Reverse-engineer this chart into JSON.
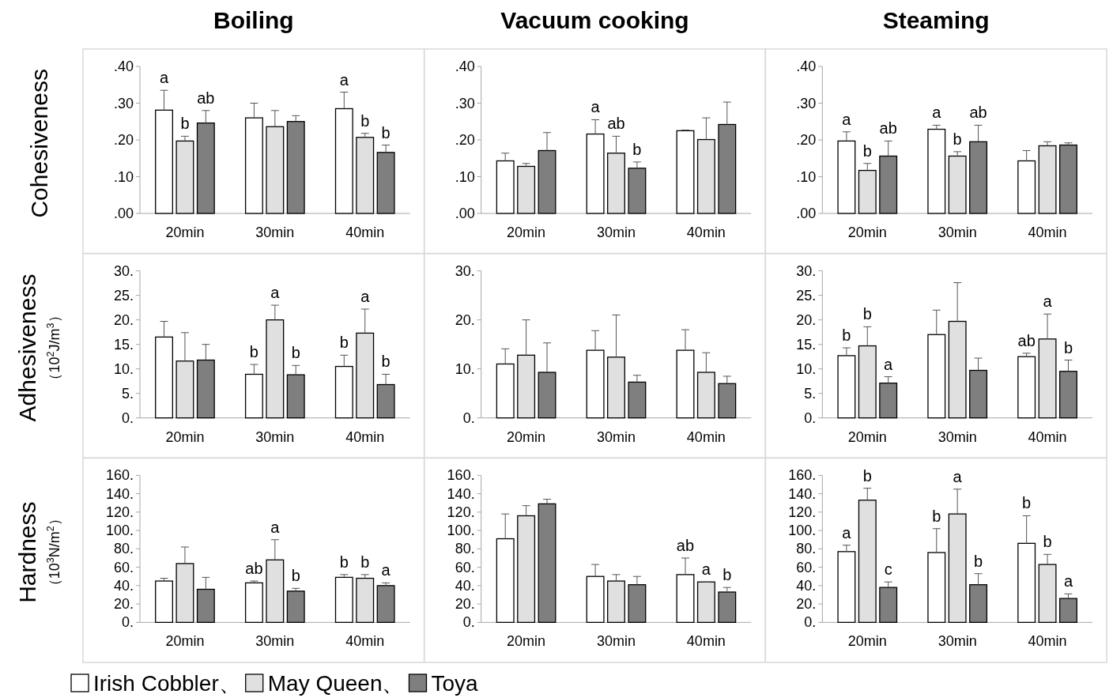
{
  "chart_data": [
    {
      "type": "bar",
      "title": "Boiling",
      "ylabel": "Cohesiveness",
      "categories": [
        "20min",
        "30min",
        "40min"
      ],
      "ylim": [
        0,
        0.4
      ],
      "yticks": [
        {
          "value": 0,
          "label": ".00"
        },
        {
          "value": 0.1,
          "label": ".10"
        },
        {
          "value": 0.2,
          "label": ".20"
        },
        {
          "value": 0.3,
          "label": ".30"
        },
        {
          "value": 0.4,
          "label": ".40"
        }
      ],
      "series": [
        {
          "color": "#ffffff",
          "values": [
            0.281,
            0.26,
            0.285
          ],
          "errors": [
            [
              0.281,
              0.335
            ],
            [
              0.26,
              0.3
            ],
            [
              0.285,
              0.33
            ]
          ],
          "value_labels": [
            "a",
            null,
            "a"
          ]
        },
        {
          "color": "#e0e0e0",
          "values": [
            0.197,
            0.236,
            0.207
          ],
          "errors": [
            [
              0.197,
              0.21
            ],
            [
              0.236,
              0.28
            ],
            [
              0.207,
              0.218
            ]
          ],
          "value_labels": [
            "b",
            null,
            "b"
          ]
        },
        {
          "color": "#7f7f7f",
          "values": [
            0.246,
            0.25,
            0.166
          ],
          "errors": [
            [
              0.246,
              0.28
            ],
            [
              0.25,
              0.266
            ],
            [
              0.166,
              0.186
            ]
          ],
          "value_labels": [
            "ab",
            null,
            "b"
          ]
        }
      ]
    },
    {
      "type": "bar",
      "title": "Vacuum cooking",
      "categories": [
        "20min",
        "30min",
        "40min"
      ],
      "ylim": [
        0,
        0.4
      ],
      "yticks": [
        {
          "value": 0,
          "label": ".00"
        },
        {
          "value": 0.1,
          "label": ".10"
        },
        {
          "value": 0.2,
          "label": ".20"
        },
        {
          "value": 0.3,
          "label": ".30"
        },
        {
          "value": 0.4,
          "label": ".40"
        }
      ],
      "series": [
        {
          "color": "#ffffff",
          "values": [
            0.143,
            0.216,
            0.225
          ],
          "errors": [
            [
              0.143,
              0.164
            ],
            [
              0.216,
              0.255
            ],
            [
              0.225,
              0.227
            ]
          ],
          "value_labels": [
            null,
            "a",
            null
          ]
        },
        {
          "color": "#e0e0e0",
          "values": [
            0.128,
            0.164,
            0.201
          ],
          "errors": [
            [
              0.128,
              0.136
            ],
            [
              0.164,
              0.21
            ],
            [
              0.201,
              0.26
            ]
          ],
          "value_labels": [
            null,
            "ab",
            null
          ]
        },
        {
          "color": "#7f7f7f",
          "values": [
            0.171,
            0.123,
            0.242
          ],
          "errors": [
            [
              0.171,
              0.22
            ],
            [
              0.123,
              0.14
            ],
            [
              0.242,
              0.303
            ]
          ],
          "value_labels": [
            null,
            "b",
            null
          ]
        }
      ]
    },
    {
      "type": "bar",
      "title": "Steaming",
      "categories": [
        "20min",
        "30min",
        "40min"
      ],
      "ylim": [
        0,
        0.4
      ],
      "yticks": [
        {
          "value": 0,
          "label": ".00"
        },
        {
          "value": 0.1,
          "label": ".10"
        },
        {
          "value": 0.2,
          "label": ".20"
        },
        {
          "value": 0.3,
          "label": ".30"
        },
        {
          "value": 0.4,
          "label": ".40"
        }
      ],
      "series": [
        {
          "color": "#ffffff",
          "values": [
            0.197,
            0.229,
            0.143
          ],
          "errors": [
            [
              0.197,
              0.222
            ],
            [
              0.229,
              0.24
            ],
            [
              0.143,
              0.171
            ]
          ],
          "value_labels": [
            "a",
            "a",
            null
          ]
        },
        {
          "color": "#e0e0e0",
          "values": [
            0.117,
            0.156,
            0.184
          ],
          "errors": [
            [
              0.117,
              0.136
            ],
            [
              0.156,
              0.168
            ],
            [
              0.184,
              0.195
            ]
          ],
          "value_labels": [
            "b",
            "b",
            null
          ]
        },
        {
          "color": "#7f7f7f",
          "values": [
            0.156,
            0.195,
            0.186
          ],
          "errors": [
            [
              0.156,
              0.197
            ],
            [
              0.195,
              0.24
            ],
            [
              0.186,
              0.192
            ]
          ],
          "value_labels": [
            "ab",
            "ab",
            null
          ]
        }
      ]
    },
    {
      "type": "bar",
      "ylabel": "Adhesiveness\n（10$^{2}$J/m$^{3}$）",
      "categories": [
        "20min",
        "30min",
        "40min"
      ],
      "ylim": [
        0,
        30
      ],
      "yticks": [
        {
          "value": 0,
          "label": "0."
        },
        {
          "value": 5,
          "label": "5."
        },
        {
          "value": 10,
          "label": "10."
        },
        {
          "value": 15,
          "label": "15."
        },
        {
          "value": 20,
          "label": "20."
        },
        {
          "value": 25,
          "label": "25."
        },
        {
          "value": 30,
          "label": "30."
        }
      ],
      "series": [
        {
          "color": "#ffffff",
          "values": [
            16.5,
            8.9,
            10.5
          ],
          "errors": [
            [
              16.5,
              19.7
            ],
            [
              8.9,
              10.9
            ],
            [
              10.5,
              12.8
            ]
          ],
          "value_labels": [
            null,
            "b",
            "b"
          ]
        },
        {
          "color": "#e0e0e0",
          "values": [
            11.6,
            20.0,
            17.3
          ],
          "errors": [
            [
              11.6,
              17.4
            ],
            [
              20.0,
              23.0
            ],
            [
              17.3,
              22.2
            ]
          ],
          "value_labels": [
            null,
            "a",
            "a"
          ]
        },
        {
          "color": "#7f7f7f",
          "values": [
            11.8,
            8.8,
            6.8
          ],
          "errors": [
            [
              11.8,
              15.0
            ],
            [
              8.8,
              10.7
            ],
            [
              6.8,
              8.9
            ]
          ],
          "value_labels": [
            null,
            "b",
            "b"
          ]
        }
      ]
    },
    {
      "type": "bar",
      "categories": [
        "20min",
        "30min",
        "40min"
      ],
      "ylim": [
        0,
        30
      ],
      "yticks": [
        {
          "value": 0,
          "label": "0."
        },
        {
          "value": 10,
          "label": "10."
        },
        {
          "value": 20,
          "label": "20."
        },
        {
          "value": 30,
          "label": "30."
        }
      ],
      "series": [
        {
          "color": "#ffffff",
          "values": [
            11.0,
            13.8,
            13.8
          ],
          "errors": [
            [
              11.0,
              14.1
            ],
            [
              13.8,
              17.8
            ],
            [
              13.8,
              18.0
            ]
          ]
        },
        {
          "color": "#e0e0e0",
          "values": [
            12.8,
            12.4,
            9.3
          ],
          "errors": [
            [
              12.8,
              20.0
            ],
            [
              12.4,
              21.0
            ],
            [
              9.3,
              13.3
            ]
          ]
        },
        {
          "color": "#7f7f7f",
          "values": [
            9.3,
            7.3,
            7.0
          ],
          "errors": [
            [
              9.3,
              15.3
            ],
            [
              7.3,
              8.7
            ],
            [
              7.0,
              8.5
            ]
          ]
        }
      ]
    },
    {
      "type": "bar",
      "categories": [
        "20min",
        "30min",
        "40min"
      ],
      "ylim": [
        0,
        30
      ],
      "yticks": [
        {
          "value": 0,
          "label": "0."
        },
        {
          "value": 5,
          "label": "5."
        },
        {
          "value": 10,
          "label": "10."
        },
        {
          "value": 15,
          "label": "15."
        },
        {
          "value": 20,
          "label": "20."
        },
        {
          "value": 25,
          "label": "25."
        },
        {
          "value": 30,
          "label": "30."
        }
      ],
      "series": [
        {
          "color": "#ffffff",
          "values": [
            12.7,
            17.0,
            12.5
          ],
          "errors": [
            [
              12.7,
              14.3
            ],
            [
              17.0,
              22.0
            ],
            [
              12.5,
              13.2
            ]
          ],
          "value_labels": [
            "b",
            null,
            "ab"
          ]
        },
        {
          "color": "#e0e0e0",
          "values": [
            14.7,
            19.7,
            16.1
          ],
          "errors": [
            [
              14.7,
              18.6
            ],
            [
              19.7,
              27.6
            ],
            [
              16.1,
              21.2
            ]
          ],
          "value_labels": [
            "b",
            null,
            "a"
          ]
        },
        {
          "color": "#7f7f7f",
          "values": [
            7.1,
            9.7,
            9.5
          ],
          "errors": [
            [
              7.1,
              8.4
            ],
            [
              9.7,
              12.2
            ],
            [
              9.5,
              11.8
            ]
          ],
          "value_labels": [
            "a",
            null,
            "b"
          ]
        }
      ]
    },
    {
      "type": "bar",
      "ylabel": "Hardness\n（10$^{3}$N/m$^{2}$）",
      "legend": "bottom",
      "categories": [
        "20min",
        "30min",
        "40min"
      ],
      "ylim": [
        0,
        160
      ],
      "yticks": [
        {
          "value": 0,
          "label": "0."
        },
        {
          "value": 20,
          "label": "20."
        },
        {
          "value": 40,
          "label": "40."
        },
        {
          "value": 60,
          "label": "60."
        },
        {
          "value": 80,
          "label": "80."
        },
        {
          "value": 100,
          "label": "100."
        },
        {
          "value": 120,
          "label": "120."
        },
        {
          "value": 140,
          "label": "140."
        },
        {
          "value": 160,
          "label": "160."
        }
      ],
      "series": [
        {
          "name": "Irish Cobbler、",
          "color": "#ffffff",
          "values": [
            45,
            43,
            49
          ],
          "errors": [
            [
              45,
              48
            ],
            [
              43,
              45
            ],
            [
              49,
              52
            ]
          ],
          "value_labels": [
            null,
            "ab",
            "b"
          ]
        },
        {
          "name": "May Queen、",
          "color": "#e0e0e0",
          "values": [
            64,
            68,
            48
          ],
          "errors": [
            [
              64,
              82
            ],
            [
              68,
              90
            ],
            [
              48,
              52
            ]
          ],
          "value_labels": [
            null,
            "a",
            "b"
          ]
        },
        {
          "name": "Toya",
          "color": "#7f7f7f",
          "values": [
            36,
            34,
            40
          ],
          "errors": [
            [
              36,
              49
            ],
            [
              34,
              37
            ],
            [
              40,
              43
            ]
          ],
          "value_labels": [
            null,
            "b",
            "a"
          ]
        }
      ]
    },
    {
      "type": "bar",
      "categories": [
        "20min",
        "30min",
        "40min"
      ],
      "ylim": [
        0,
        160
      ],
      "yticks": [
        {
          "value": 0,
          "label": "0."
        },
        {
          "value": 20,
          "label": "20."
        },
        {
          "value": 40,
          "label": "40."
        },
        {
          "value": 60,
          "label": "60."
        },
        {
          "value": 80,
          "label": "80."
        },
        {
          "value": 100,
          "label": "100."
        },
        {
          "value": 120,
          "label": "120."
        },
        {
          "value": 140,
          "label": "140."
        },
        {
          "value": 160,
          "label": "160."
        }
      ],
      "series": [
        {
          "color": "#ffffff",
          "values": [
            91,
            50,
            52
          ],
          "errors": [
            [
              91,
              118
            ],
            [
              50,
              63
            ],
            [
              52,
              70
            ]
          ],
          "value_labels": [
            null,
            null,
            "ab"
          ]
        },
        {
          "color": "#e0e0e0",
          "values": [
            116,
            45,
            44
          ],
          "errors": [
            [
              116,
              127
            ],
            [
              45,
              52
            ],
            [
              44,
              44
            ]
          ],
          "value_labels": [
            null,
            null,
            "a"
          ]
        },
        {
          "color": "#7f7f7f",
          "values": [
            129,
            41,
            33
          ],
          "errors": [
            [
              129,
              134
            ],
            [
              41,
              50
            ],
            [
              33,
              38
            ]
          ],
          "value_labels": [
            null,
            null,
            "b"
          ]
        }
      ]
    },
    {
      "type": "bar",
      "categories": [
        "20min",
        "30min",
        "40min"
      ],
      "ylim": [
        0,
        160
      ],
      "yticks": [
        {
          "value": 0,
          "label": "0."
        },
        {
          "value": 20,
          "label": "20."
        },
        {
          "value": 40,
          "label": "40."
        },
        {
          "value": 60,
          "label": "60."
        },
        {
          "value": 80,
          "label": "80."
        },
        {
          "value": 100,
          "label": "100."
        },
        {
          "value": 120,
          "label": "120."
        },
        {
          "value": 140,
          "label": "140."
        },
        {
          "value": 160,
          "label": "160."
        }
      ],
      "series": [
        {
          "color": "#ffffff",
          "values": [
            77,
            76,
            86
          ],
          "errors": [
            [
              77,
              84
            ],
            [
              76,
              102
            ],
            [
              86,
              116
            ]
          ],
          "value_labels": [
            "a",
            "b",
            "b"
          ]
        },
        {
          "color": "#e0e0e0",
          "values": [
            133,
            118,
            63
          ],
          "errors": [
            [
              133,
              146
            ],
            [
              118,
              145
            ],
            [
              63,
              74
            ]
          ],
          "value_labels": [
            "b",
            "a",
            "b"
          ]
        },
        {
          "color": "#7f7f7f",
          "values": [
            38,
            41,
            26
          ],
          "errors": [
            [
              38,
              44
            ],
            [
              41,
              53
            ],
            [
              26,
              31
            ]
          ],
          "value_labels": [
            "c",
            "b",
            "a"
          ]
        }
      ]
    }
  ]
}
